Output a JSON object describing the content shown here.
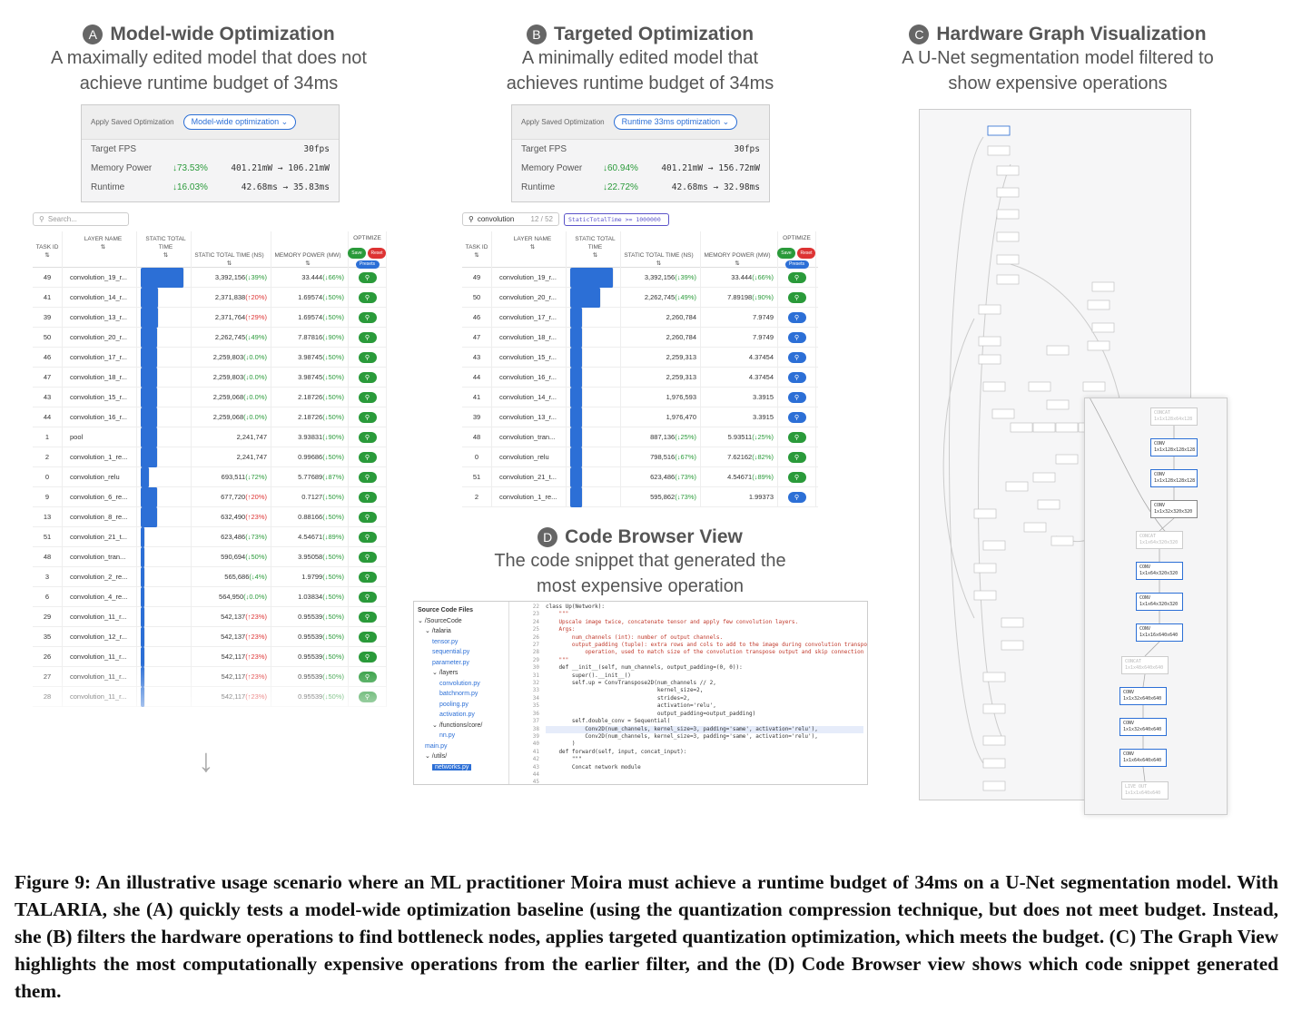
{
  "panelA": {
    "letter": "A",
    "title": "Model-wide Optimization",
    "sub1": "A maximally edited model that does not",
    "sub2": "achieve runtime budget of 34ms",
    "apply_label": "Apply Saved Optimization",
    "pill": "Model-wide optimization ⌄",
    "rows": [
      {
        "k": "Target FPS",
        "g": "",
        "v": "30fps"
      },
      {
        "k": "Memory Power",
        "g": "↓73.53%",
        "v": "401.21mW → 106.21mW"
      },
      {
        "k": "Runtime",
        "g": "↓16.03%",
        "v": "42.68ms → 35.83ms"
      }
    ],
    "search": "Search...",
    "table": [
      [
        "49",
        "convolution_19_r...",
        "1",
        "3,392,156",
        "(↓39%)",
        "dn",
        "33.444",
        "(↓66%)",
        "dn"
      ],
      [
        "41",
        "convolution_14_r...",
        "0.42",
        "2,371,838",
        "(↑20%)",
        "up",
        "1.69574",
        "(↓50%)",
        "dn"
      ],
      [
        "39",
        "convolution_13_r...",
        "0.42",
        "2,371,764",
        "(↑29%)",
        "up",
        "1.69574",
        "(↓50%)",
        "dn"
      ],
      [
        "50",
        "convolution_20_r...",
        "0.4",
        "2,262,745",
        "(↓49%)",
        "dn",
        "7.87816",
        "(↓90%)",
        "dn"
      ],
      [
        "46",
        "convolution_17_r...",
        "0.4",
        "2,259,803",
        "(↓0.0%)",
        "dn",
        "3.98745",
        "(↓50%)",
        "dn"
      ],
      [
        "47",
        "convolution_18_r...",
        "0.4",
        "2,259,803",
        "(↓0.0%)",
        "dn",
        "3.98745",
        "(↓50%)",
        "dn"
      ],
      [
        "43",
        "convolution_15_r...",
        "0.4",
        "2,259,068",
        "(↓0.0%)",
        "dn",
        "2.18726",
        "(↓50%)",
        "dn"
      ],
      [
        "44",
        "convolution_16_r...",
        "0.4",
        "2,259,068",
        "(↓0.0%)",
        "dn",
        "2.18726",
        "(↓50%)",
        "dn"
      ],
      [
        "1",
        "pool",
        "0.4",
        "2,241,747",
        "",
        "",
        "3.93831",
        "(↓90%)",
        "dn"
      ],
      [
        "2",
        "convolution_1_re...",
        "0.4",
        "2,241,747",
        "",
        "",
        "0.99686",
        "(↓50%)",
        "dn"
      ],
      [
        "0",
        "convolution_relu",
        "0.2",
        "693,511",
        "(↓72%)",
        "dn",
        "5.77689",
        "(↓87%)",
        "dn"
      ],
      [
        "9",
        "convolution_6_re...",
        "0.4",
        "677,720",
        "(↑20%)",
        "up",
        "0.7127",
        "(↓50%)",
        "dn"
      ],
      [
        "13",
        "convolution_8_re...",
        "0.4",
        "632,490",
        "(↑23%)",
        "up",
        "0.88166",
        "(↓50%)",
        "dn"
      ],
      [
        "51",
        "convolution_21_t...",
        "0.1",
        "623,486",
        "(↓73%)",
        "dn",
        "4.54671",
        "(↓89%)",
        "dn"
      ],
      [
        "48",
        "convolution_tran...",
        "0.1",
        "590,694",
        "(↓50%)",
        "dn",
        "3.95058",
        "(↓50%)",
        "dn"
      ],
      [
        "3",
        "convolution_2_re...",
        "0.1",
        "565,686",
        "(↓4%)",
        "dn",
        "1.9799",
        "(↓50%)",
        "dn"
      ],
      [
        "6",
        "convolution_4_re...",
        "0.1",
        "564,950",
        "(↓0.0%)",
        "dn",
        "1.03834",
        "(↓50%)",
        "dn"
      ],
      [
        "29",
        "convolution_11_r...",
        "0.1",
        "542,137",
        "(↑23%)",
        "up",
        "0.95539",
        "(↓50%)",
        "dn"
      ],
      [
        "35",
        "convolution_12_r...",
        "0.1",
        "542,137",
        "(↑23%)",
        "up",
        "0.95539",
        "(↓50%)",
        "dn"
      ],
      [
        "26",
        "convolution_11_r...",
        "0.1",
        "542,117",
        "(↑23%)",
        "up",
        "0.95539",
        "(↓50%)",
        "dn"
      ],
      [
        "27",
        "convolution_11_r...",
        "0.1",
        "542,117",
        "(↑23%)",
        "up",
        "0.95539",
        "(↓50%)",
        "dn"
      ],
      [
        "28",
        "convolution_11_r...",
        "0.1",
        "542,117",
        "(↑23%)",
        "up",
        "0.95539",
        "(↓50%)",
        "dn"
      ]
    ]
  },
  "panelB": {
    "letter": "B",
    "title": "Targeted Optimization",
    "sub1": "A minimally edited model that",
    "sub2": "achieves runtime budget of 34ms",
    "apply_label": "Apply Saved Optimization",
    "pill": "Runtime 33ms optimization ⌄",
    "rows": [
      {
        "k": "Target FPS",
        "g": "",
        "v": "30fps"
      },
      {
        "k": "Memory Power",
        "g": "↓60.94%",
        "v": "401.21mW → 156.72mW"
      },
      {
        "k": "Runtime",
        "g": "↓22.72%",
        "v": "42.68ms → 32.98ms"
      }
    ],
    "search": "convolution",
    "count": "12 / 52",
    "filter": "StaticTotalTime >= 1000000",
    "table": [
      [
        "49",
        "convolution_19_r...",
        "1",
        "3,392,156",
        "(↓39%)",
        "dn",
        "33.444",
        "(↓66%)",
        "dn",
        "g"
      ],
      [
        "50",
        "convolution_20_r...",
        "0.7",
        "2,262,745",
        "(↓49%)",
        "dn",
        "7.89198",
        "(↓90%)",
        "dn",
        "g"
      ],
      [
        "46",
        "convolution_17_r...",
        "0.3",
        "2,260,784",
        "",
        "",
        "7.9749",
        "",
        "",
        "b"
      ],
      [
        "47",
        "convolution_18_r...",
        "0.3",
        "2,260,784",
        "",
        "",
        "7.9749",
        "",
        "",
        "b"
      ],
      [
        "43",
        "convolution_15_r...",
        "0.3",
        "2,259,313",
        "",
        "",
        "4.37454",
        "",
        "",
        "b"
      ],
      [
        "44",
        "convolution_16_r...",
        "0.3",
        "2,259,313",
        "",
        "",
        "4.37454",
        "",
        "",
        "b"
      ],
      [
        "41",
        "convolution_14_r...",
        "0.3",
        "1,976,593",
        "",
        "",
        "3.3915",
        "",
        "",
        "b"
      ],
      [
        "39",
        "convolution_13_r...",
        "0.3",
        "1,976,470",
        "",
        "",
        "3.3915",
        "",
        "",
        "b"
      ],
      [
        "48",
        "convolution_tran...",
        "0.3",
        "887,136",
        "(↓25%)",
        "dn",
        "5.93511",
        "(↓25%)",
        "dn",
        "g"
      ],
      [
        "0",
        "convolution_relu",
        "0.3",
        "798,516",
        "(↓67%)",
        "dn",
        "7.62162",
        "(↓82%)",
        "dn",
        "g"
      ],
      [
        "51",
        "convolution_21_t...",
        "0.3",
        "623,486",
        "(↓73%)",
        "dn",
        "4.54671",
        "(↓89%)",
        "dn",
        "g"
      ],
      [
        "2",
        "convolution_1_re...",
        "0.3",
        "595,862",
        "(↓73%)",
        "dn",
        "1.99373",
        "",
        "",
        "b"
      ]
    ]
  },
  "table_headers": [
    "Task ID",
    "LAYER NAME",
    "STATIC TOTAL TIME",
    "STATIC TOTAL TIME (ns)",
    "MEMORY POWER (mW)",
    "OPTIMIZE"
  ],
  "btns": {
    "save": "Save",
    "reset": "Reset",
    "presets": "Presets"
  },
  "panelC": {
    "letter": "C",
    "title": "Hardware Graph Visualization",
    "sub1": "A U-Net segmentation model filtered to",
    "sub2": "show expensive operations",
    "nodes": [
      {
        "t": "CONCAT",
        "d": "1x1x128x64x128",
        "s": "off"
      },
      {
        "t": "CONV",
        "d": "1x1x128x128x128",
        "s": "on"
      },
      {
        "t": "CONV",
        "d": "1x1x128x128x128",
        "s": "on"
      },
      {
        "t": "CONV",
        "d": "1x1x32x320x320",
        "s": "mid"
      },
      {
        "t": "CONCAT",
        "d": "1x1x64x320x320",
        "s": "off"
      },
      {
        "t": "CONV",
        "d": "1x1x64x320x320",
        "s": "on"
      },
      {
        "t": "CONV",
        "d": "1x1x64x320x320",
        "s": "on"
      },
      {
        "t": "CONV",
        "d": "1x1x16x640x640",
        "s": "on"
      },
      {
        "t": "CONCAT",
        "d": "1x1x48x640x640",
        "s": "off"
      },
      {
        "t": "CONV",
        "d": "1x1x32x640x640",
        "s": "on"
      },
      {
        "t": "CONV",
        "d": "1x1x32x640x640",
        "s": "on"
      },
      {
        "t": "CONV",
        "d": "1x1x64x640x640",
        "s": "on"
      },
      {
        "t": "LIVE OUT",
        "d": "1x1x1x640x640",
        "s": "off"
      }
    ]
  },
  "panelD": {
    "letter": "D",
    "title": "Code Browser View",
    "sub1": "The code snippet that generated the",
    "sub2": "most expensive operation",
    "tree": [
      {
        "t": "Source Code Files",
        "c": "h",
        "i": 0
      },
      {
        "t": "⌄ /SourceCode",
        "c": "",
        "i": 0
      },
      {
        "t": "⌄ /talaria",
        "c": "",
        "i": 1
      },
      {
        "t": "tensor.py",
        "c": "bl",
        "i": 2
      },
      {
        "t": "sequential.py",
        "c": "bl",
        "i": 2
      },
      {
        "t": "parameter.py",
        "c": "bl",
        "i": 2
      },
      {
        "t": "⌄ /layers",
        "c": "",
        "i": 2
      },
      {
        "t": "convolution.py",
        "c": "bl",
        "i": 3
      },
      {
        "t": "batchnorm.py",
        "c": "bl",
        "i": 3
      },
      {
        "t": "pooling.py",
        "c": "bl",
        "i": 3
      },
      {
        "t": "activation.py",
        "c": "bl",
        "i": 3
      },
      {
        "t": "⌄ /functions/core/",
        "c": "",
        "i": 2
      },
      {
        "t": "nn.py",
        "c": "bl",
        "i": 3
      },
      {
        "t": "main.py",
        "c": "bl",
        "i": 1
      },
      {
        "t": "⌄ /utils/",
        "c": "",
        "i": 1
      },
      {
        "t": "networks.py",
        "c": "sel",
        "i": 2
      }
    ],
    "lines": [
      "22",
      "23",
      "24",
      "25",
      "26",
      "27",
      "28",
      "29",
      "30",
      "31",
      "32",
      "33",
      "34",
      "35",
      "36",
      "37",
      "38",
      "39",
      "40",
      "41",
      "42",
      "43",
      "44",
      "45"
    ],
    "code": [
      "class Up(Network):",
      "    \"\"\"",
      "    Upscale image twice, concatenate tensor and apply few convolution layers.",
      "",
      "    Args:",
      "        num_channels (int): number of output channels.",
      "        output_padding (tuple): extra rows and cols to add to the image during convolution transpose",
      "            operation, used to match size of the convolution transpose output and skip connection tensor.",
      "    \"\"\"",
      "    def __init__(self, num_channels, output_padding=(0, 0)):",
      "        super().__init__()",
      "        self.up = ConvTranspose2D(num_channels // 2,",
      "                                  kernel_size=2,",
      "                                  strides=2,",
      "                                  activation='relu',",
      "                                  output_padding=output_padding)",
      "        self.double_conv = Sequential(",
      "            Conv2D(num_channels, kernel_size=3, padding='same', activation='relu'),",
      "            Conv2D(num_channels, kernel_size=3, padding='same', activation='relu'),",
      "        )",
      "",
      "    def forward(self, input, concat_input):",
      "        \"\"\"",
      "        Concat network module"
    ]
  },
  "caption": "Figure 9: An illustrative usage scenario where an ML practitioner Moira must achieve a runtime budget of 34ms on a U-Net segmentation model. With TALARIA, she (A) quickly tests a model-wide optimization baseline (using the quantization compression technique, but does not meet budget. Instead, she (B) filters the hardware operations to find bottleneck nodes, applies targeted quantization optimization, which meets the budget. (C) The Graph View highlights the most computationally expensive operations from the earlier filter, and the (D) Code Browser view shows which code snippet generated them."
}
